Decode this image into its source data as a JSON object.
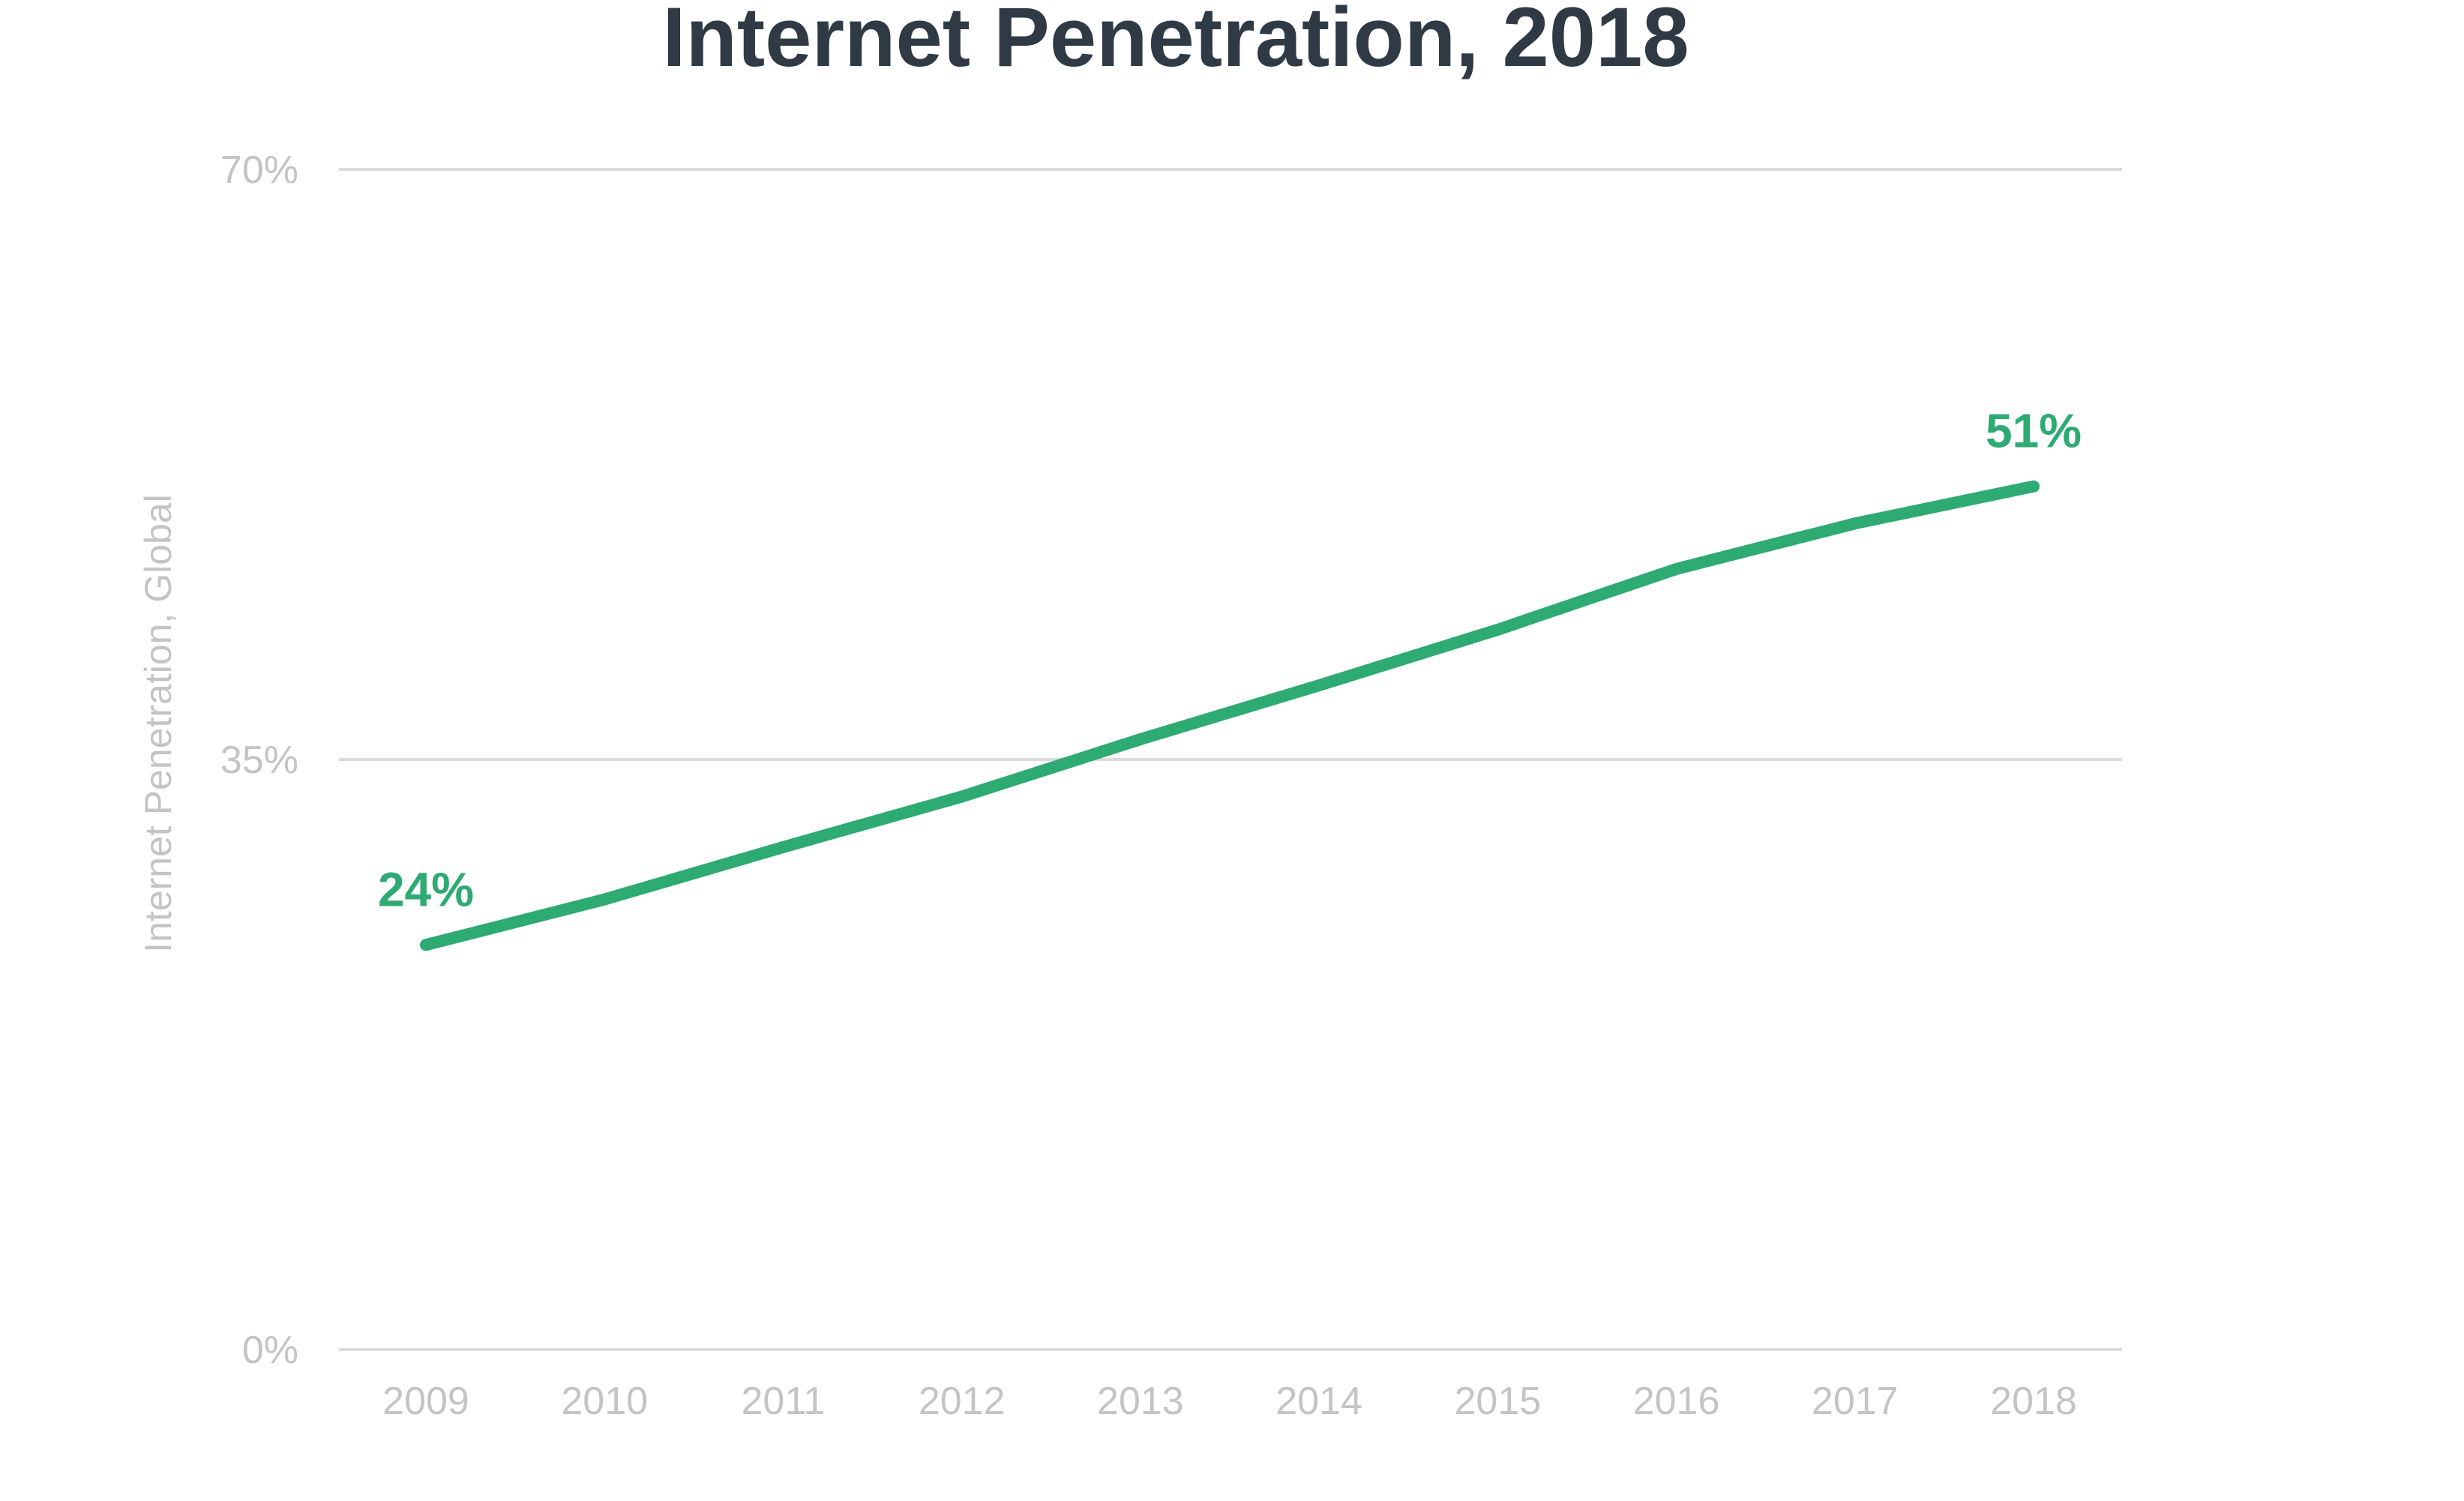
{
  "chart_data": {
    "type": "line",
    "title": "Internet Penetration, 2018",
    "xlabel": "",
    "ylabel": "Internet Penetration, Global",
    "x": [
      "2009",
      "2010",
      "2011",
      "2012",
      "2013",
      "2014",
      "2015",
      "2016",
      "2017",
      "2018"
    ],
    "series": [
      {
        "values": [
          24,
          26.7,
          29.8,
          32.8,
          36.2,
          39.4,
          42.7,
          46.3,
          49.0,
          51.2
        ]
      }
    ],
    "ylim": [
      0,
      70
    ],
    "yticks": [
      0,
      35,
      70
    ],
    "ytick_labels": [
      "0%",
      "35%",
      "70%"
    ],
    "data_labels": [
      {
        "index": 0,
        "text": "24%"
      },
      {
        "index": 9,
        "text": "51%"
      }
    ],
    "grid": true,
    "legend": "none",
    "line_color": "#2eaa73"
  }
}
